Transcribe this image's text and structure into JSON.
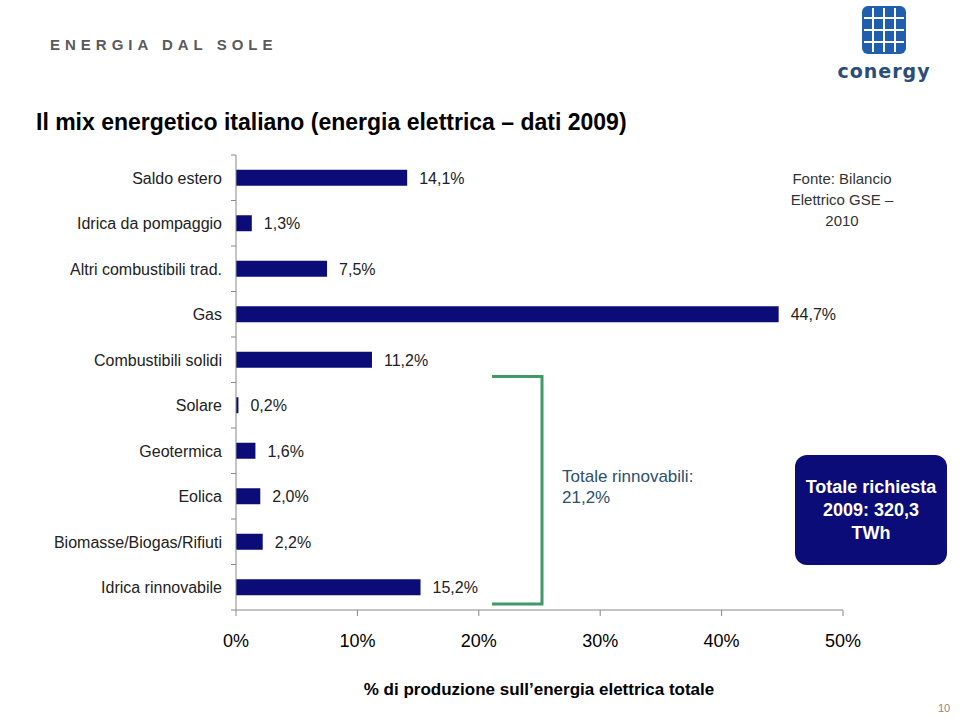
{
  "header": {
    "brand": "ENERGIA DAL SOLE",
    "logo": "conergy"
  },
  "page_number": "10",
  "chart_data": {
    "type": "bar",
    "orientation": "horizontal",
    "title": "Il mix energetico italiano (energia elettrica – dati 2009)",
    "xlabel": "% di produzione sull’energia elettrica totale",
    "categories": [
      "Saldo estero",
      "Idrica da pompaggio",
      "Altri combustibili trad.",
      "Gas",
      "Combustibili solidi",
      "Solare",
      "Geotermica",
      "Eolica",
      "Biomasse/Biogas/Rifiuti",
      "Idrica rinnovabile"
    ],
    "values": [
      14.1,
      1.3,
      7.5,
      44.7,
      11.2,
      0.2,
      1.6,
      2.0,
      2.2,
      15.2
    ],
    "value_labels": [
      "14,1%",
      "1,3%",
      "7,5%",
      "44,7%",
      "11,2%",
      "0,2%",
      "1,6%",
      "2,0%",
      "2,2%",
      "15,2%"
    ],
    "color": "#0c0c78",
    "xlim": [
      0,
      50
    ],
    "xticks": [
      {
        "value": 0,
        "label": "0%"
      },
      {
        "value": 10,
        "label": "10%"
      },
      {
        "value": 20,
        "label": "20%"
      },
      {
        "value": 30,
        "label": "30%"
      },
      {
        "value": 40,
        "label": "40%"
      },
      {
        "value": 50,
        "label": "50%"
      }
    ],
    "grid": false,
    "data_labels": true,
    "annotations": [
      {
        "text": "Fonte: Bilancio Elettrico GSE – 2010"
      },
      {
        "text": "Totale rinnovabili: 21,2%"
      },
      {
        "text": "Totale richiesta 2009: 320,3 TWh"
      }
    ]
  }
}
